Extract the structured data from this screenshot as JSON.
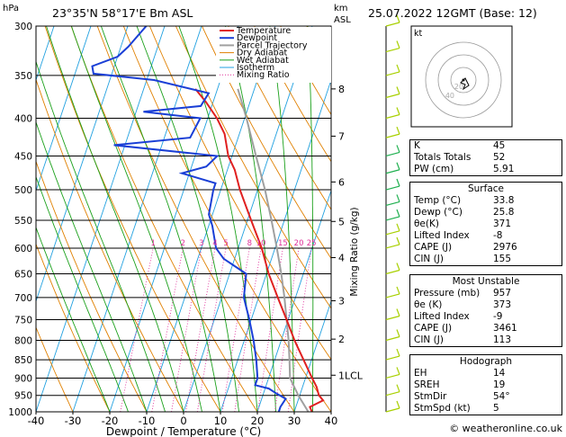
{
  "header": {
    "location": "23°35'N 58°17'E Bm ASL",
    "datetime": "25.07.2022 12GMT (Base: 12)",
    "hpa_label": "hPa",
    "km_label": "km",
    "asl_label": "ASL"
  },
  "colors": {
    "temperature": "#e02020",
    "dewpoint": "#1a3fd6",
    "parcel": "#a0a0a0",
    "dry_adiabat": "#e08000",
    "wet_adiabat": "#1aa01a",
    "isotherm": "#20a0e0",
    "mixing_ratio": "#e0309a",
    "wind": "#a8d000"
  },
  "chart_data": {
    "type": "line",
    "title": "",
    "xlabel": "Dewpoint / Temperature (°C)",
    "ylabel": "",
    "right_axis_label": "Mixing Ratio (g/kg)",
    "xlim": [
      -40,
      40
    ],
    "ylim": [
      1000,
      300
    ],
    "y_scale": "log",
    "x_ticks": [
      -40,
      -30,
      -20,
      -10,
      0,
      10,
      20,
      30,
      40
    ],
    "pressure_levels": [
      300,
      350,
      400,
      450,
      500,
      550,
      600,
      650,
      700,
      750,
      800,
      850,
      900,
      950,
      1000
    ],
    "height_km_ticks": [
      {
        "label": "8",
        "p": 365
      },
      {
        "label": "7",
        "p": 423
      },
      {
        "label": "6",
        "p": 488
      },
      {
        "label": "5",
        "p": 552
      },
      {
        "label": "4",
        "p": 618
      },
      {
        "label": "3",
        "p": 707
      },
      {
        "label": "2",
        "p": 797
      },
      {
        "label": "1LCL",
        "p": 892
      }
    ],
    "mixing_ratio_labels": [
      "1",
      "2",
      "3",
      "4",
      "5",
      "8",
      "10",
      "15",
      "20",
      "25"
    ],
    "mixing_ratio_values": [
      1,
      2,
      3,
      4,
      5,
      8,
      10,
      15,
      20,
      25
    ],
    "legend": [
      "Temperature",
      "Dewpoint",
      "Parcel Trajectory",
      "Dry Adiabat",
      "Wet Adiabat",
      "Isotherm",
      "Mixing Ratio"
    ],
    "legend_position": "top-center",
    "series": [
      {
        "name": "Temperature",
        "points": [
          [
            1000,
            34.8
          ],
          [
            985,
            33.8
          ],
          [
            965,
            36.8
          ],
          [
            950,
            35.2
          ],
          [
            925,
            33.8
          ],
          [
            900,
            31.8
          ],
          [
            850,
            27.8
          ],
          [
            800,
            23.6
          ],
          [
            750,
            19.6
          ],
          [
            700,
            15.2
          ],
          [
            650,
            10.6
          ],
          [
            600,
            6.4
          ],
          [
            550,
            1.0
          ],
          [
            500,
            -4.8
          ],
          [
            470,
            -8.0
          ],
          [
            450,
            -11.0
          ],
          [
            420,
            -14.0
          ],
          [
            400,
            -17.5
          ],
          [
            380,
            -22.0
          ],
          [
            365,
            -26.0
          ]
        ]
      },
      {
        "name": "Dewpoint",
        "points": [
          [
            1000,
            25.8
          ],
          [
            985,
            25.8
          ],
          [
            960,
            26.5
          ],
          [
            945,
            23.6
          ],
          [
            930,
            21.0
          ],
          [
            920,
            17.0
          ],
          [
            900,
            17.0
          ],
          [
            850,
            15.0
          ],
          [
            800,
            12.5
          ],
          [
            750,
            9.5
          ],
          [
            700,
            6.0
          ],
          [
            650,
            4.5
          ],
          [
            620,
            -3.0
          ],
          [
            600,
            -6.0
          ],
          [
            560,
            -9.0
          ],
          [
            540,
            -11.0
          ],
          [
            500,
            -12.0
          ],
          [
            490,
            -12.0
          ],
          [
            475,
            -22.0
          ],
          [
            465,
            -16.0
          ],
          [
            450,
            -14.0
          ],
          [
            435,
            -43.0
          ],
          [
            425,
            -23.0
          ],
          [
            400,
            -22.0
          ],
          [
            392,
            -38.0
          ],
          [
            385,
            -23.0
          ],
          [
            370,
            -22.0
          ],
          [
            355,
            -38.0
          ],
          [
            348,
            -55.0
          ],
          [
            340,
            -56.0
          ],
          [
            330,
            -50.0
          ],
          [
            320,
            -48.0
          ],
          [
            300,
            -45.0
          ]
        ]
      },
      {
        "name": "Parcel Trajectory",
        "points": [
          [
            1000,
            33.8
          ],
          [
            950,
            29.6
          ],
          [
            900,
            25.8
          ],
          [
            850,
            24.0
          ],
          [
            800,
            22.0
          ],
          [
            750,
            19.6
          ],
          [
            700,
            17.0
          ],
          [
            650,
            14.0
          ],
          [
            600,
            10.5
          ],
          [
            550,
            6.5
          ],
          [
            500,
            2.0
          ],
          [
            450,
            -3.5
          ],
          [
            400,
            -9.5
          ],
          [
            365,
            -14.5
          ]
        ]
      }
    ]
  },
  "hodograph": {
    "label": "kt",
    "ring_labels": [
      "20",
      "40"
    ]
  },
  "panel": {
    "indices": [
      {
        "label": "K",
        "value": "45"
      },
      {
        "label": "Totals Totals",
        "value": "52"
      },
      {
        "label": "PW (cm)",
        "value": "5.91"
      }
    ],
    "surface": {
      "title": "Surface",
      "rows": [
        {
          "label": "Temp (°C)",
          "value": "33.8"
        },
        {
          "label": "Dewp (°C)",
          "value": "25.8"
        },
        {
          "label": "θe(K)",
          "value": "371"
        },
        {
          "label": "Lifted Index",
          "value": "-8"
        },
        {
          "label": "CAPE (J)",
          "value": "2976"
        },
        {
          "label": "CIN (J)",
          "value": "155"
        }
      ]
    },
    "most_unstable": {
      "title": "Most Unstable",
      "rows": [
        {
          "label": "Pressure (mb)",
          "value": "957"
        },
        {
          "label": "θe (K)",
          "value": "373"
        },
        {
          "label": "Lifted Index",
          "value": "-9"
        },
        {
          "label": "CAPE (J)",
          "value": "3461"
        },
        {
          "label": "CIN (J)",
          "value": "113"
        }
      ]
    },
    "hodograph_box": {
      "title": "Hodograph",
      "rows": [
        {
          "label": "EH",
          "value": "14"
        },
        {
          "label": "SREH",
          "value": "19"
        },
        {
          "label": "StmDir",
          "value": "54°"
        },
        {
          "label": "StmSpd (kt)",
          "value": "5"
        }
      ]
    }
  },
  "credit": "© weatheronline.co.uk"
}
